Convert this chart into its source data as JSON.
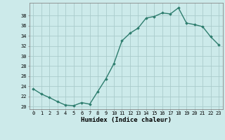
{
  "x": [
    0,
    1,
    2,
    3,
    4,
    5,
    6,
    7,
    8,
    9,
    10,
    11,
    12,
    13,
    14,
    15,
    16,
    17,
    18,
    19,
    20,
    21,
    22,
    23
  ],
  "y": [
    23.5,
    22.5,
    21.8,
    21.0,
    20.3,
    20.2,
    20.8,
    20.5,
    23.0,
    25.5,
    28.5,
    33.0,
    34.5,
    35.5,
    37.5,
    37.8,
    38.5,
    38.3,
    39.5,
    36.5,
    36.2,
    35.8,
    33.8,
    32.2
  ],
  "line_color": "#2e7d6e",
  "marker": "D",
  "marker_size": 1.8,
  "bg_color": "#cceaea",
  "grid_color": "#aacccc",
  "xlabel": "Humidex (Indice chaleur)",
  "xlim": [
    -0.5,
    23.5
  ],
  "ylim": [
    19.5,
    40.5
  ],
  "yticks": [
    20,
    22,
    24,
    26,
    28,
    30,
    32,
    34,
    36,
    38
  ],
  "xticks": [
    0,
    1,
    2,
    3,
    4,
    5,
    6,
    7,
    8,
    9,
    10,
    11,
    12,
    13,
    14,
    15,
    16,
    17,
    18,
    19,
    20,
    21,
    22,
    23
  ],
  "xtick_labels": [
    "0",
    "1",
    "2",
    "3",
    "4",
    "5",
    "6",
    "7",
    "8",
    "9",
    "10",
    "11",
    "12",
    "13",
    "14",
    "15",
    "16",
    "17",
    "18",
    "19",
    "20",
    "21",
    "22",
    "23"
  ],
  "tick_fontsize": 5.0,
  "xlabel_fontsize": 6.5,
  "line_width": 1.0
}
